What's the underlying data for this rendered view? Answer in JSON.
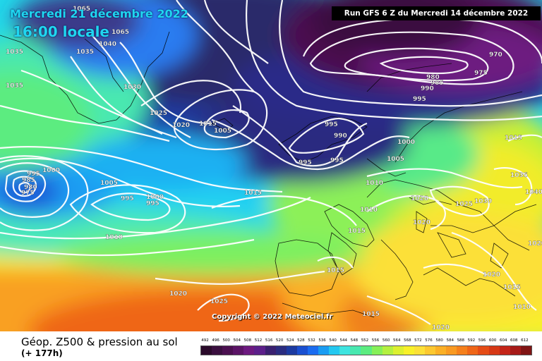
{
  "header": {
    "date_line": "Mercredi 21 décembre 2022",
    "time_line": "16:00 locale",
    "run_info": "Run GFS 6 Z du Mercredi 14 décembre 2022"
  },
  "footer": {
    "parameter": "Géop. Z500 & pression au sol",
    "lead_time": "(+ 177h)",
    "copyright": "Copyright © 2022 Meteociel.fr"
  },
  "scale": {
    "labels": [
      "492",
      "496",
      "500",
      "504",
      "508",
      "512",
      "516",
      "520",
      "524",
      "528",
      "532",
      "536",
      "540",
      "544",
      "548",
      "552",
      "556",
      "560",
      "564",
      "568",
      "572",
      "576",
      "580",
      "584",
      "588",
      "592",
      "596",
      "600",
      "604",
      "608",
      "612"
    ],
    "colors": [
      "#2a0a2a",
      "#3a0f3f",
      "#4b1050",
      "#5b1466",
      "#6d1a80",
      "#5c1f8a",
      "#3a2070",
      "#2a2c80",
      "#1c3aa0",
      "#1a4fd0",
      "#1b6cf0",
      "#1a9cf2",
      "#24c8f0",
      "#3ee4e0",
      "#48e8b0",
      "#5cec80",
      "#86f058",
      "#b4f040",
      "#dcf030",
      "#f8f02a",
      "#fce038",
      "#fcc830",
      "#fbb026",
      "#f99a22",
      "#f5801c",
      "#ef6618",
      "#e54c16",
      "#d63816",
      "#c42418",
      "#a61a18",
      "#801414"
    ],
    "legend_colors_note": "low to high geopotential"
  },
  "isobar_labels": [
    {
      "text": "1065"
    },
    {
      "text": "1065"
    },
    {
      "text": "1040"
    },
    {
      "text": "1035"
    },
    {
      "text": "1035"
    },
    {
      "text": "1035"
    },
    {
      "text": "1030"
    },
    {
      "text": "1025"
    },
    {
      "text": "1020"
    },
    {
      "text": "1015"
    },
    {
      "text": "1005"
    },
    {
      "text": "995"
    },
    {
      "text": "990"
    },
    {
      "text": "995"
    },
    {
      "text": "1000"
    },
    {
      "text": "1005"
    },
    {
      "text": "1010"
    },
    {
      "text": "1015"
    },
    {
      "text": "970"
    },
    {
      "text": "975"
    },
    {
      "text": "980"
    },
    {
      "text": "985"
    },
    {
      "text": "990"
    },
    {
      "text": "995"
    },
    {
      "text": "1000"
    },
    {
      "text": "995"
    },
    {
      "text": "985"
    },
    {
      "text": "980"
    },
    {
      "text": "975"
    },
    {
      "text": "1005"
    },
    {
      "text": "995"
    },
    {
      "text": "1000"
    },
    {
      "text": "995"
    },
    {
      "text": "1010"
    },
    {
      "text": "1020"
    },
    {
      "text": "1025"
    },
    {
      "text": "1020"
    },
    {
      "text": "1015"
    },
    {
      "text": "1020"
    },
    {
      "text": "1025"
    },
    {
      "text": "1030"
    },
    {
      "text": "1035"
    },
    {
      "text": "1040"
    },
    {
      "text": "1015"
    },
    {
      "text": "1015"
    },
    {
      "text": "1020"
    },
    {
      "text": "1020"
    },
    {
      "text": "1015"
    },
    {
      "text": "1010"
    },
    {
      "text": "1020"
    },
    {
      "text": "1015"
    },
    {
      "text": "1010"
    },
    {
      "text": "995"
    }
  ]
}
